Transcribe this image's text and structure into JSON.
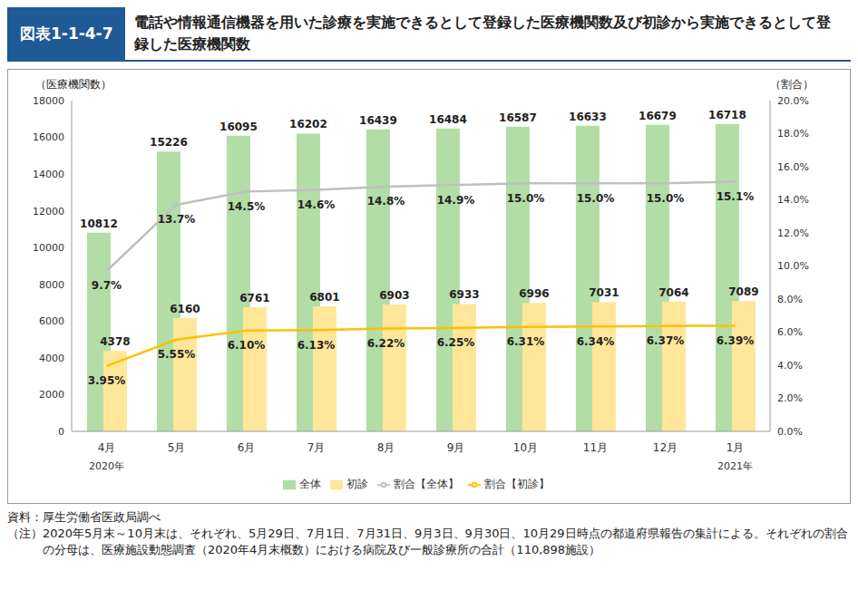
{
  "header": {
    "badge": "図表1-1-4-7",
    "title": "電話や情報通信機器を用いた診療を実施できるとして登録した医療機関数及び初診から実施できるとして登録した医療機関数"
  },
  "chart_data": {
    "type": "bar",
    "y_label": "（医療機関数）",
    "y2_label": "（割合）",
    "categories": [
      "4月",
      "5月",
      "6月",
      "7月",
      "8月",
      "9月",
      "10月",
      "11月",
      "12月",
      "1月"
    ],
    "year_labels": [
      "2020年",
      null,
      null,
      null,
      null,
      null,
      null,
      null,
      null,
      "2021年"
    ],
    "ylim": [
      0,
      18000
    ],
    "yticks": [
      0,
      2000,
      4000,
      6000,
      8000,
      10000,
      12000,
      14000,
      16000,
      18000
    ],
    "y2lim": [
      0,
      20
    ],
    "y2ticks": [
      {
        "value": 0,
        "label": "0.0%"
      },
      {
        "value": 2,
        "label": "2.0%"
      },
      {
        "value": 4,
        "label": "4.0%"
      },
      {
        "value": 6,
        "label": "6.0%"
      },
      {
        "value": 8,
        "label": "8.0%"
      },
      {
        "value": 10,
        "label": "10.0%"
      },
      {
        "value": 12,
        "label": "12.0%"
      },
      {
        "value": 14,
        "label": "14.0%"
      },
      {
        "value": 16,
        "label": "16.0%"
      },
      {
        "value": 18,
        "label": "18.0%"
      },
      {
        "value": 20,
        "label": "20.0%"
      }
    ],
    "grid": false,
    "legend": "bottom",
    "data_labels": true,
    "series": [
      {
        "name": "全体",
        "type": "bar",
        "color": "#b2dda6",
        "values": [
          10812,
          15226,
          16095,
          16202,
          16439,
          16484,
          16587,
          16633,
          16679,
          16718
        ]
      },
      {
        "name": "初診",
        "type": "bar",
        "color": "#ffe699",
        "values": [
          4378,
          6160,
          6761,
          6801,
          6903,
          6933,
          6996,
          7031,
          7064,
          7089
        ]
      },
      {
        "name": "割合【全体】",
        "type": "line",
        "axis": "y2",
        "color": "#bfbfbf",
        "marker": "none",
        "line_style": "solid",
        "values": [
          9.7,
          13.7,
          14.5,
          14.6,
          14.8,
          14.9,
          15.0,
          15.0,
          15.0,
          15.1
        ],
        "value_labels": [
          "9.7%",
          "13.7%",
          "14.5%",
          "14.6%",
          "14.8%",
          "14.9%",
          "15.0%",
          "15.0%",
          "15.0%",
          "15.1%"
        ]
      },
      {
        "name": "割合【初診】",
        "type": "line",
        "axis": "y2",
        "color": "#ffc000",
        "marker": "none",
        "line_style": "solid",
        "values": [
          3.95,
          5.55,
          6.1,
          6.13,
          6.22,
          6.25,
          6.31,
          6.34,
          6.37,
          6.39
        ],
        "value_labels": [
          "3.95%",
          "5.55%",
          "6.10%",
          "6.13%",
          "6.22%",
          "6.25%",
          "6.31%",
          "6.34%",
          "6.37%",
          "6.39%"
        ]
      }
    ]
  },
  "notes": [
    {
      "label": "資料：",
      "text": "厚生労働省医政局調べ"
    },
    {
      "label": "（注）",
      "text": "2020年5月末～10月末は、それぞれ、5月29日、7月1日、7月31日、9月3日、9月30日、10月29日時点の都道府県報告の集計による。それぞれの割合の分母は、医療施設動態調査（2020年4月末概数）における病院及び一般診療所の合計（110,898施設）"
    }
  ]
}
